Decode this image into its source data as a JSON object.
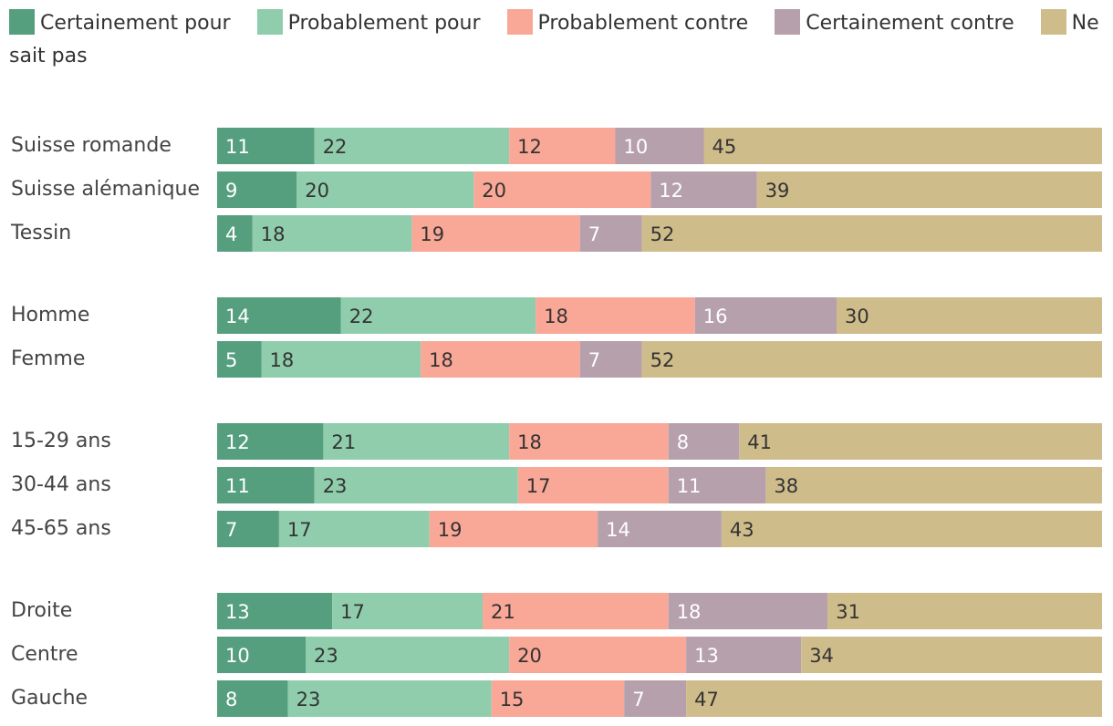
{
  "chart_data": {
    "type": "bar",
    "orientation": "horizontal",
    "stacked": true,
    "categories": [
      "Suisse romande",
      "Suisse alémanique",
      "Tessin",
      "Homme",
      "Femme",
      "15-29 ans",
      "30-44 ans",
      "45-65 ans",
      "Droite",
      "Centre",
      "Gauche"
    ],
    "groups": [
      [
        "Suisse romande",
        "Suisse alémanique",
        "Tessin"
      ],
      [
        "Homme",
        "Femme"
      ],
      [
        "15-29 ans",
        "30-44 ans",
        "45-65 ans"
      ],
      [
        "Droite",
        "Centre",
        "Gauche"
      ]
    ],
    "series": [
      {
        "name": "Certainement pour",
        "color": "#559f7f",
        "label_color": "#ffffff",
        "values": [
          11,
          9,
          4,
          14,
          5,
          12,
          11,
          7,
          13,
          10,
          8
        ]
      },
      {
        "name": "Probablement pour",
        "color": "#8fcdad",
        "label_color": "#333333",
        "values": [
          22,
          20,
          18,
          22,
          18,
          21,
          23,
          17,
          17,
          23,
          23
        ]
      },
      {
        "name": "Probablement contre",
        "color": "#f9a797",
        "label_color": "#333333",
        "values": [
          12,
          20,
          19,
          18,
          18,
          18,
          17,
          19,
          21,
          20,
          15
        ]
      },
      {
        "name": "Certainement contre",
        "color": "#b6a0ac",
        "label_color": "#ffffff",
        "values": [
          10,
          12,
          7,
          16,
          7,
          8,
          11,
          14,
          18,
          13,
          7
        ]
      },
      {
        "name": "Ne sait pas",
        "color": "#cfbc8b",
        "label_color": "#333333",
        "values": [
          45,
          39,
          52,
          30,
          52,
          41,
          38,
          43,
          31,
          34,
          47
        ]
      }
    ],
    "title": "",
    "xlabel": "",
    "ylabel": "",
    "xlim": [
      0,
      100
    ],
    "legend_position": "top",
    "grid": false
  }
}
